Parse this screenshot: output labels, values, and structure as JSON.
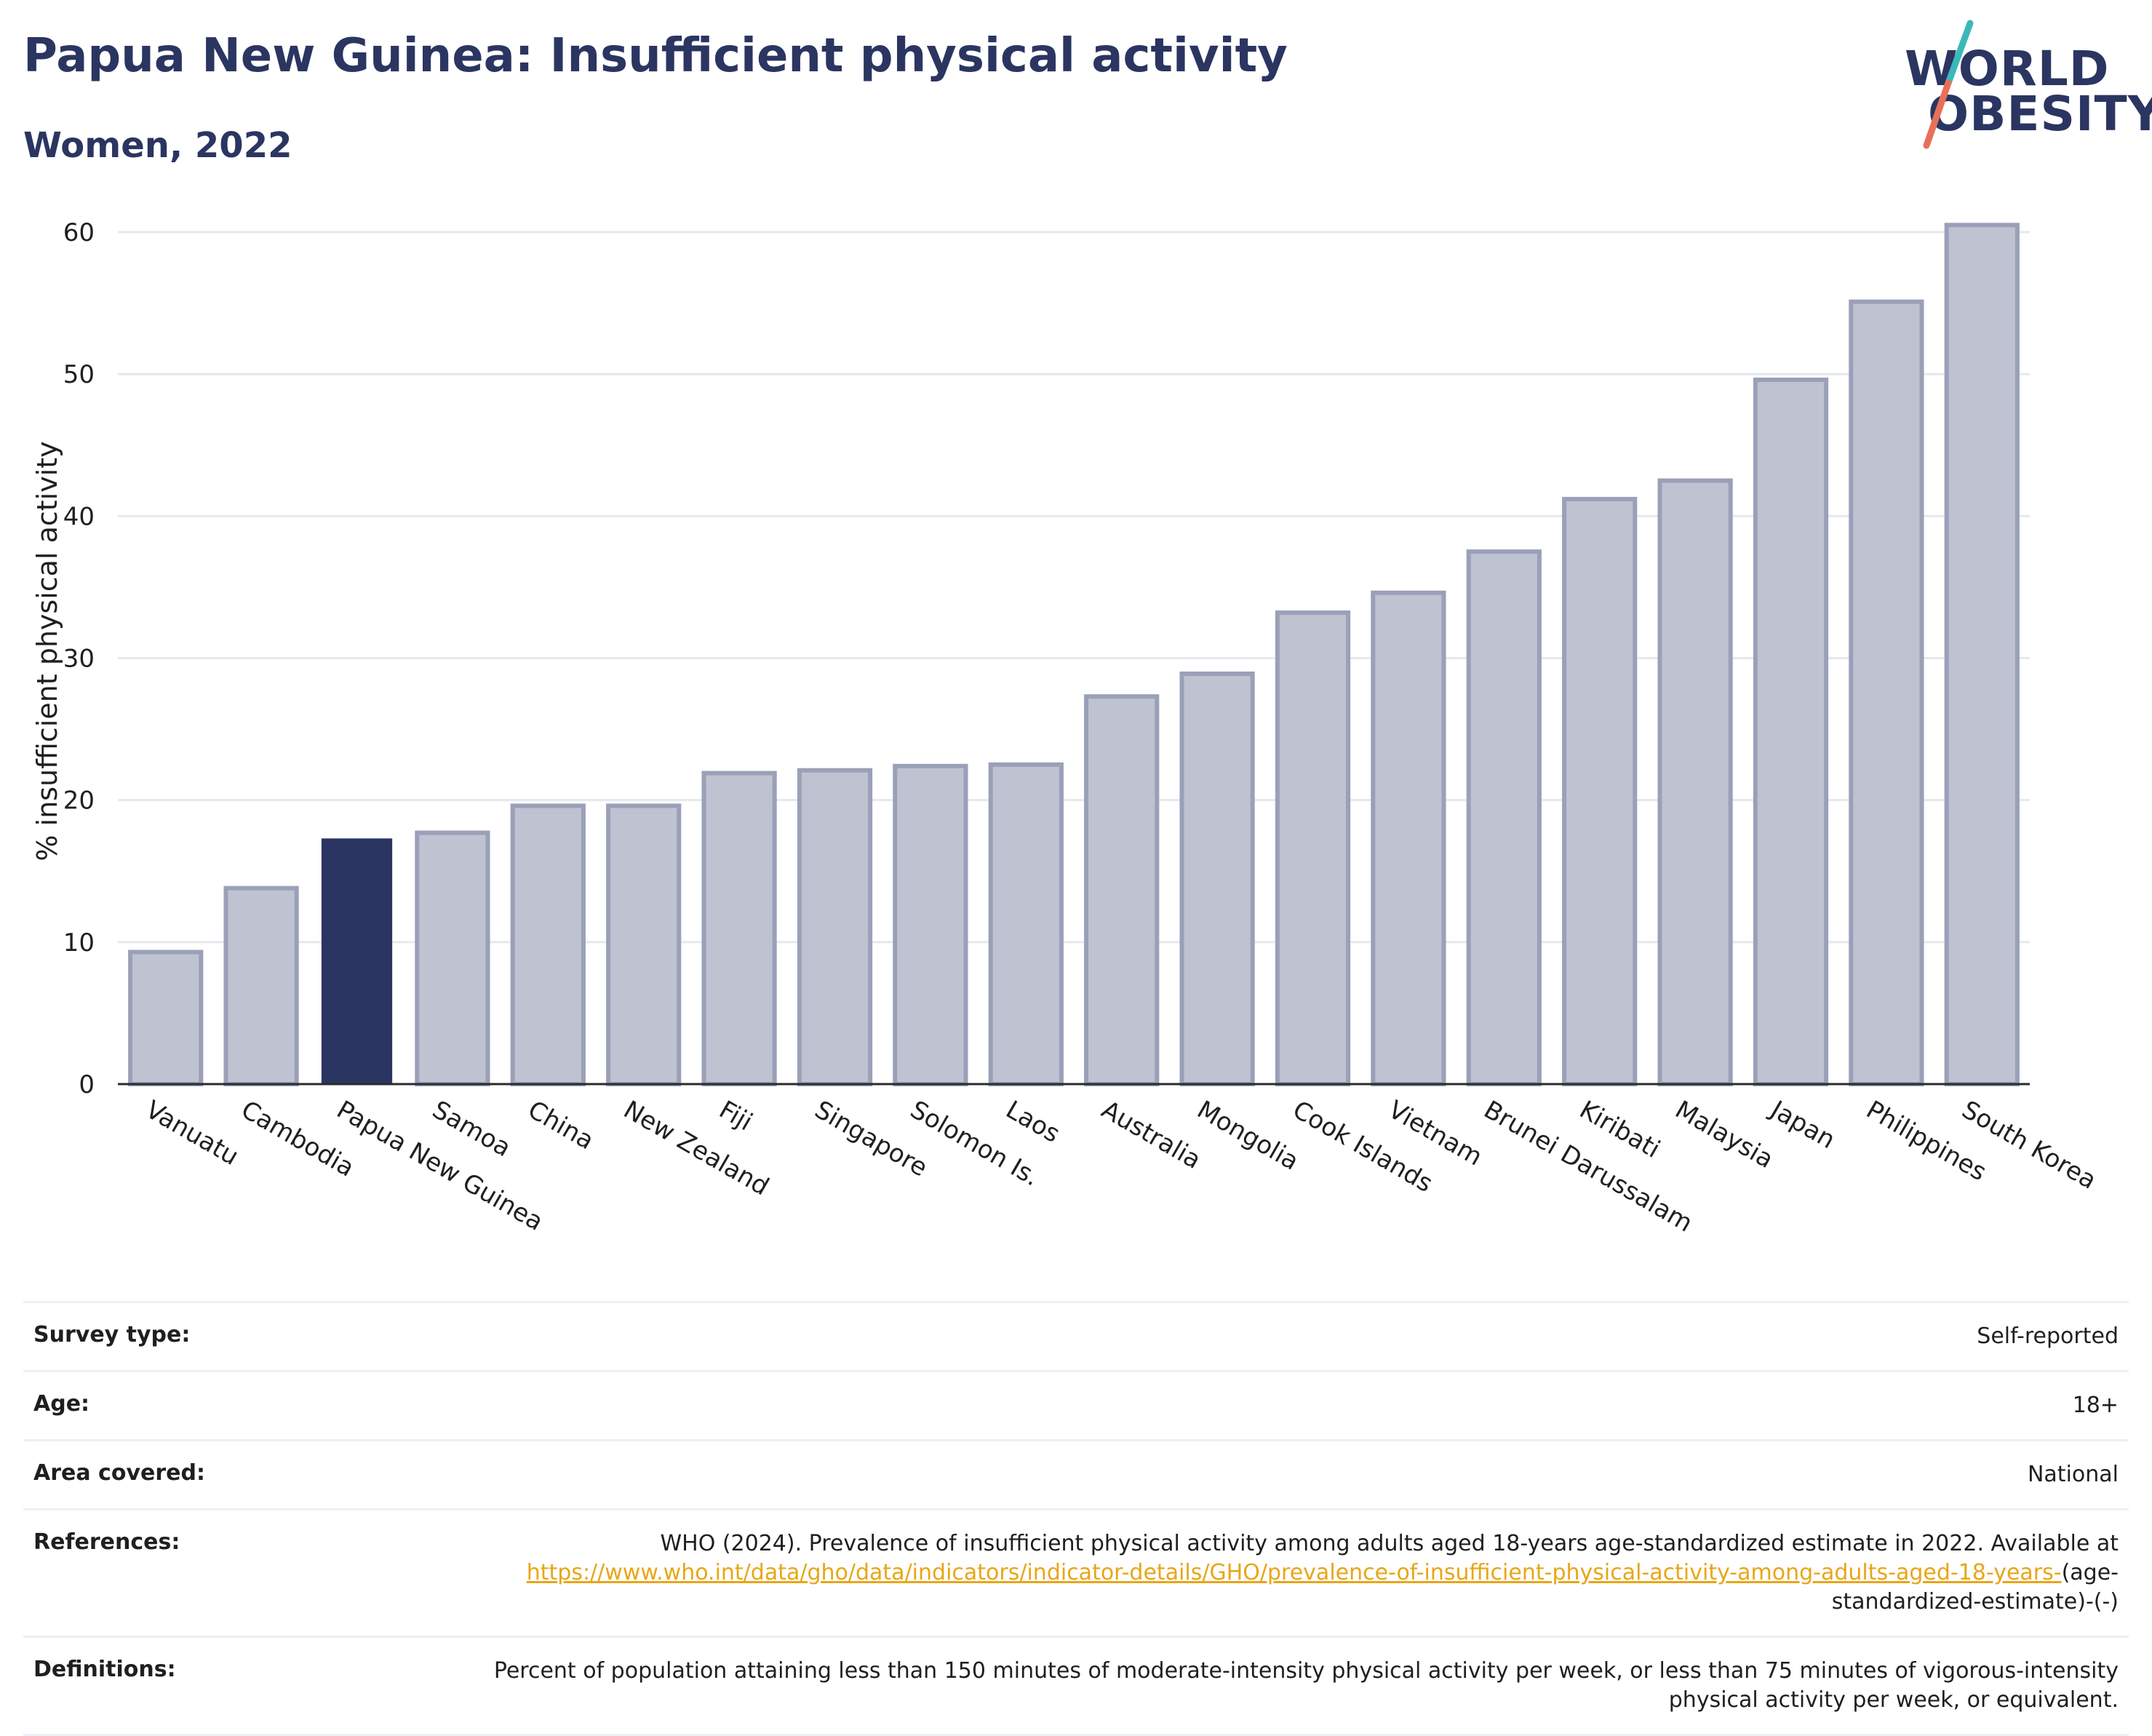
{
  "header": {
    "title": "Papua New Guinea: Insufficient physical activity",
    "subtitle": "Women, 2022"
  },
  "logo": {
    "line1": "WORLD",
    "line2": "OBESITY",
    "icon": "slash-mark-icon",
    "colors": {
      "teal": "#3bb8b8",
      "coral": "#e8705a",
      "navy": "#2b3561"
    }
  },
  "chart_data": {
    "type": "bar",
    "title": "Papua New Guinea: Insufficient physical activity",
    "subtitle": "Women, 2022",
    "xlabel": "",
    "ylabel": "% insufficient physical activity",
    "categories": [
      "Vanuatu",
      "Cambodia",
      "Papua New Guinea",
      "Samoa",
      "China",
      "New Zealand",
      "Fiji",
      "Singapore",
      "Solomon Is.",
      "Laos",
      "Australia",
      "Mongolia",
      "Cook Islands",
      "Vietnam",
      "Brunei Darussalam",
      "Kiribati",
      "Malaysia",
      "Japan",
      "Philippines",
      "South Korea"
    ],
    "values": [
      9.3,
      13.8,
      17.3,
      17.7,
      19.6,
      19.6,
      21.9,
      22.1,
      22.4,
      22.5,
      27.3,
      28.9,
      33.2,
      34.6,
      37.5,
      41.2,
      42.5,
      49.6,
      55.1,
      60.5
    ],
    "highlight": "Papua New Guinea",
    "ylim": [
      0,
      62
    ],
    "yticks": [
      0,
      10,
      20,
      30,
      40,
      50,
      60
    ],
    "grid": true,
    "legend": "none",
    "colors": {
      "bar": "#bfc2d0",
      "bar_edge": "#9aa0b8",
      "highlight": "#2b3561",
      "grid": "#e6e8ef",
      "axis": "#2b2b2b"
    }
  },
  "info": {
    "survey_type": {
      "label": "Survey type:",
      "value": "Self-reported"
    },
    "age": {
      "label": "Age:",
      "value": "18+"
    },
    "area": {
      "label": "Area covered:",
      "value": "National"
    },
    "references": {
      "label": "References:",
      "text": "WHO (2024). Prevalence of insufficient physical activity among adults aged 18-years age-standardized estimate in 2022. Available at",
      "link": "https://www.who.int/data/gho/data/indicators/indicator-details/GHO/prevalence-of-insufficient-physical-activity-among-adults-aged-18-years-",
      "suffix": "(age-standardized-estimate)-(-)"
    },
    "definitions": {
      "label": "Definitions:",
      "value": "Percent of population attaining less than 150 minutes of moderate-intensity physical activity per week, or less than 75 minutes of vigorous-intensity physical activity per week, or equivalent."
    }
  }
}
